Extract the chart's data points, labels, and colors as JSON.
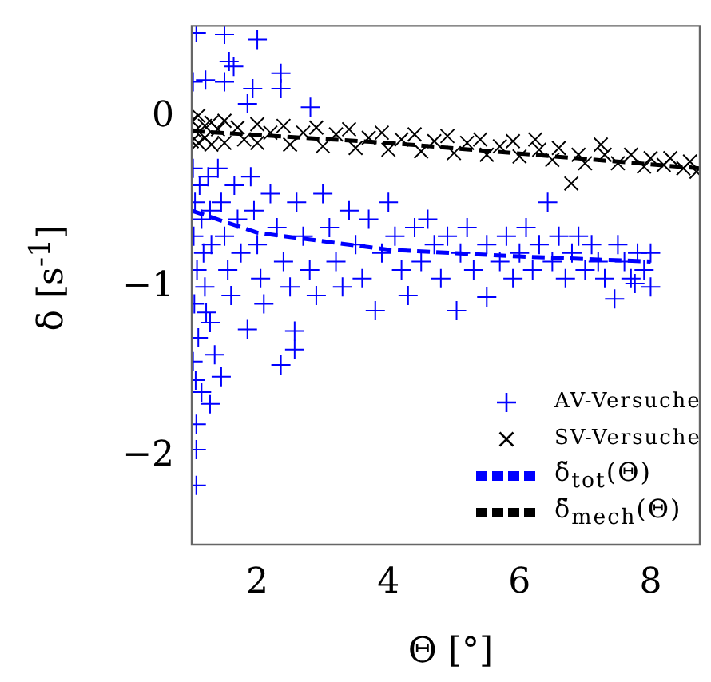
{
  "chart_data": {
    "type": "scatter",
    "xlabel": "Θ [°]",
    "ylabel": "δ [s$^{-1}$]",
    "xlim": [
      1,
      8.75
    ],
    "ylim": [
      -2.52,
      0.54
    ],
    "xticks": [
      2,
      4,
      6,
      8
    ],
    "yticks": [
      -2,
      -1,
      0
    ],
    "grid": false,
    "legend": "bottom right",
    "series": [
      {
        "name": "AV-Versuche",
        "type": "scatter",
        "marker": "cross",
        "color": "#0000ff",
        "x": [
          1.07,
          1.5,
          2.0,
          1.57,
          1.64,
          1.5,
          1.21,
          1.02,
          2.36,
          2.36,
          1.93,
          2.81,
          1.85,
          1.02,
          1.05,
          1.03,
          1.08,
          1.04,
          1.1,
          1.06,
          1.12,
          1.15,
          1.18,
          1.2,
          1.22,
          1.25,
          1.28,
          1.3,
          1.28,
          1.07,
          1.07,
          1.07,
          1.28,
          1.45,
          1.02,
          1.15,
          1.35,
          1.4,
          1.45,
          1.5,
          1.55,
          1.6,
          1.65,
          1.7,
          1.75,
          1.85,
          1.9,
          1.95,
          2.0,
          2.05,
          2.1,
          2.2,
          2.3,
          2.36,
          2.4,
          2.5,
          2.57,
          2.57,
          2.6,
          2.7,
          2.8,
          2.9,
          3.0,
          3.1,
          3.2,
          3.3,
          3.4,
          3.5,
          3.6,
          3.7,
          3.8,
          3.9,
          4.0,
          4.1,
          4.2,
          4.3,
          4.4,
          4.5,
          4.6,
          4.7,
          4.8,
          4.9,
          5.04,
          5.1,
          5.2,
          5.3,
          5.5,
          5.5,
          5.7,
          5.8,
          5.9,
          6.0,
          6.1,
          6.2,
          6.3,
          6.43,
          6.5,
          6.6,
          6.7,
          6.8,
          6.9,
          7.0,
          7.1,
          7.2,
          7.3,
          7.45,
          7.5,
          7.6,
          7.7,
          7.76,
          7.8,
          7.9,
          8.0,
          8.0
        ],
        "values": [
          0.5,
          0.49,
          0.46,
          0.33,
          0.3,
          0.21,
          0.22,
          0.21,
          0.26,
          0.17,
          0.17,
          0.06,
          0.08,
          -0.3,
          -0.5,
          -0.7,
          -0.9,
          -1.1,
          -1.3,
          -1.55,
          -0.4,
          -0.6,
          -0.8,
          -1.0,
          -1.15,
          -0.35,
          -0.55,
          -0.75,
          -1.21,
          -1.81,
          -1.96,
          -2.17,
          -1.69,
          -1.53,
          -1.44,
          -1.62,
          -1.4,
          -0.3,
          -0.5,
          -0.7,
          -0.9,
          -1.05,
          -0.4,
          -0.6,
          -0.8,
          -1.25,
          -0.35,
          -0.55,
          -0.75,
          -0.95,
          -1.1,
          -0.45,
          -0.65,
          -1.46,
          -0.85,
          -1.0,
          -1.37,
          -1.26,
          -0.5,
          -0.7,
          -0.9,
          -1.05,
          -0.45,
          -0.65,
          -0.85,
          -1.0,
          -0.55,
          -0.75,
          -0.95,
          -0.6,
          -1.14,
          -0.8,
          -0.5,
          -0.7,
          -0.9,
          -1.05,
          -0.65,
          -0.85,
          -0.6,
          -0.75,
          -0.95,
          -0.7,
          -1.14,
          -0.8,
          -0.65,
          -0.9,
          -1.06,
          -0.75,
          -0.85,
          -0.7,
          -0.95,
          -0.8,
          -0.65,
          -0.9,
          -0.75,
          -0.5,
          -0.85,
          -0.7,
          -0.95,
          -0.8,
          -0.7,
          -0.9,
          -0.75,
          -0.85,
          -0.95,
          -1.07,
          -0.75,
          -0.85,
          -0.95,
          -0.98,
          -0.8,
          -0.9,
          -1.0,
          -0.8
        ]
      },
      {
        "name": "SV-Versuche",
        "type": "scatter",
        "marker": "x",
        "color": "#000000",
        "x": [
          1.0,
          1.0,
          1.05,
          1.1,
          1.1,
          1.2,
          1.2,
          1.3,
          1.3,
          1.4,
          1.5,
          1.5,
          1.7,
          1.8,
          2.0,
          2.0,
          2.2,
          2.4,
          2.5,
          2.7,
          2.9,
          3.0,
          3.2,
          3.4,
          3.5,
          3.7,
          3.9,
          4.0,
          4.2,
          4.4,
          4.5,
          4.7,
          4.9,
          5.0,
          5.2,
          5.4,
          5.5,
          5.7,
          5.9,
          6.0,
          6.24,
          6.3,
          6.5,
          6.6,
          6.79,
          6.9,
          7.0,
          7.24,
          7.3,
          7.5,
          7.7,
          7.9,
          8.0,
          8.2,
          8.3,
          8.5,
          8.6,
          8.7
        ],
        "values": [
          -0.02,
          -0.14,
          -0.08,
          0.01,
          -0.15,
          -0.05,
          -0.12,
          -0.03,
          -0.16,
          -0.07,
          -0.02,
          -0.15,
          -0.06,
          -0.13,
          -0.04,
          -0.15,
          -0.09,
          -0.05,
          -0.16,
          -0.09,
          -0.06,
          -0.17,
          -0.1,
          -0.07,
          -0.18,
          -0.12,
          -0.09,
          -0.19,
          -0.13,
          -0.1,
          -0.2,
          -0.14,
          -0.11,
          -0.21,
          -0.15,
          -0.13,
          -0.22,
          -0.17,
          -0.14,
          -0.23,
          -0.13,
          -0.19,
          -0.25,
          -0.18,
          -0.39,
          -0.22,
          -0.27,
          -0.16,
          -0.22,
          -0.27,
          -0.22,
          -0.29,
          -0.24,
          -0.28,
          -0.24,
          -0.3,
          -0.26,
          -0.32
        ]
      },
      {
        "name": "δ̃$_{tot}$(Θ)",
        "type": "line",
        "line_style": "dashed",
        "marker": "none",
        "color": "#0000ff",
        "x": [
          1,
          2,
          4,
          6,
          8
        ],
        "values": [
          -0.55,
          -0.68,
          -0.78,
          -0.82,
          -0.85
        ]
      },
      {
        "name": "δ̃$_{mech}$(Θ)",
        "type": "line",
        "line_style": "dashed",
        "marker": "none",
        "color": "#000000",
        "x": [
          1,
          4,
          8.75
        ],
        "values": [
          -0.08,
          -0.15,
          -0.3
        ]
      }
    ]
  }
}
